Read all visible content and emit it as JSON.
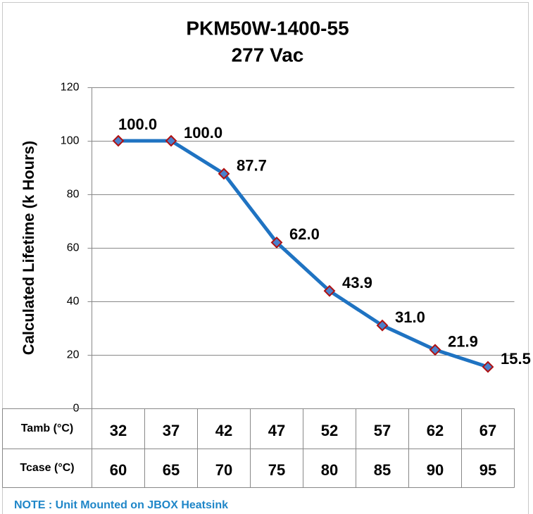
{
  "chart_data": {
    "type": "line",
    "title": "PKM50W-1400-55",
    "subtitle": "277 Vac",
    "y_label": "Calculated Lifetime (k Hours)",
    "categories": [
      32,
      37,
      42,
      47,
      52,
      57,
      62,
      67
    ],
    "series": [
      {
        "name": "Calculated Lifetime",
        "color": "#1f73c2",
        "marker_color": "#4a80cc",
        "marker_edge": "#b01010",
        "values": [
          100.0,
          100.0,
          87.7,
          62.0,
          43.9,
          31.0,
          21.9,
          15.5
        ],
        "value_labels": [
          "100.0",
          "100.0",
          "87.7",
          "62.0",
          "43.9",
          "31.0",
          "21.9",
          "15.5"
        ]
      }
    ],
    "ylim": [
      0,
      120
    ],
    "yticks": [
      0,
      20,
      40,
      60,
      80,
      100,
      120
    ],
    "grid": true,
    "table": {
      "rows": [
        {
          "label": "Tamb (°C)",
          "values": [
            32,
            37,
            42,
            47,
            52,
            57,
            62,
            67
          ]
        },
        {
          "label": "Tcase (°C)",
          "values": [
            60,
            65,
            70,
            75,
            80,
            85,
            90,
            95
          ]
        }
      ]
    },
    "note": "NOTE : Unit Mounted on JBOX Heatsink"
  }
}
